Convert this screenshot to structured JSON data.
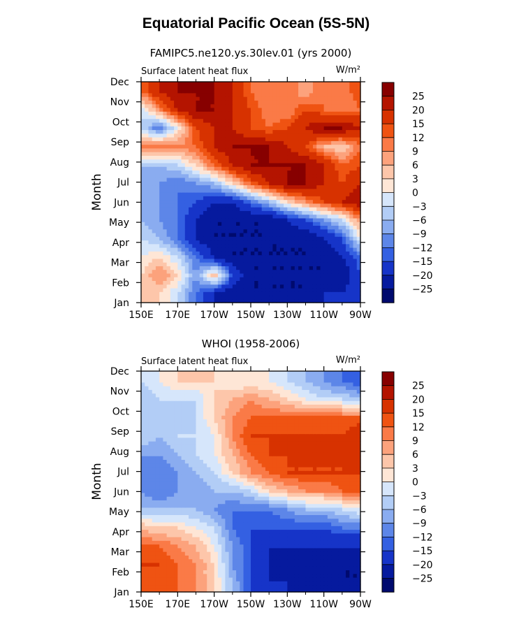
{
  "title": "Equatorial Pacific Ocean (5S-5N)",
  "chart_data": [
    {
      "type": "heatmap",
      "subtitle": "FAMIPC5.ne120.ys.30lev.01 (yrs 2000)",
      "left_label": "Surface latent heat flux",
      "units": "W/m²",
      "ylabel": "Month",
      "xlabel": "",
      "x_ticks": [
        "150E",
        "170E",
        "170W",
        "150W",
        "130W",
        "110W",
        "90W"
      ],
      "y_ticks": [
        "Jan",
        "Feb",
        "Mar",
        "Apr",
        "May",
        "Jun",
        "Jul",
        "Aug",
        "Sep",
        "Oct",
        "Nov",
        "Dec"
      ],
      "colorbar_levels": [
        "25",
        "20",
        "15",
        "12",
        "9",
        "6",
        "3",
        "0",
        "-3",
        "-6",
        "-9",
        "-12",
        "-15",
        "-20",
        "-25"
      ],
      "grid_values": [
        [
          3,
          3,
          -3,
          -12,
          -20,
          -25,
          -25,
          -25,
          -25,
          -25,
          -20,
          -20,
          -15
        ],
        [
          3,
          9,
          3,
          -9,
          6,
          -15,
          -25,
          -25,
          -25,
          -25,
          -25,
          -25,
          -15
        ],
        [
          0,
          3,
          -3,
          -12,
          -20,
          -25,
          -25,
          -25,
          -25,
          -25,
          -25,
          -20,
          -12
        ],
        [
          -3,
          -6,
          -12,
          -20,
          -25,
          -25,
          -25,
          -25,
          -25,
          -25,
          -20,
          -15,
          0
        ],
        [
          -6,
          -9,
          -12,
          -20,
          -25,
          -25,
          -25,
          -25,
          -20,
          -15,
          -9,
          -3,
          9
        ],
        [
          -6,
          -9,
          -12,
          -15,
          -20,
          -20,
          -12,
          -6,
          3,
          9,
          15,
          20,
          25
        ],
        [
          -6,
          -9,
          -12,
          -9,
          -6,
          3,
          12,
          20,
          25,
          25,
          20,
          15,
          20
        ],
        [
          -6,
          -6,
          -3,
          3,
          12,
          20,
          25,
          25,
          25,
          25,
          20,
          12,
          15
        ],
        [
          9,
          12,
          9,
          12,
          20,
          25,
          25,
          25,
          20,
          15,
          6,
          3,
          12
        ],
        [
          -3,
          -12,
          0,
          15,
          20,
          20,
          15,
          12,
          15,
          20,
          25,
          25,
          20
        ],
        [
          -3,
          9,
          20,
          25,
          25,
          20,
          15,
          9,
          9,
          15,
          12,
          9,
          12
        ],
        [
          12,
          20,
          25,
          25,
          25,
          20,
          12,
          9,
          12,
          6,
          12,
          9,
          15
        ]
      ]
    },
    {
      "type": "heatmap",
      "subtitle": "WHOI (1958-2006)",
      "left_label": "Surface latent heat flux",
      "units": "W/m²",
      "ylabel": "Month",
      "xlabel": "",
      "x_ticks": [
        "150E",
        "170E",
        "170W",
        "150W",
        "130W",
        "110W",
        "90W"
      ],
      "y_ticks": [
        "Jan",
        "Feb",
        "Mar",
        "Apr",
        "May",
        "Jun",
        "Jul",
        "Aug",
        "Sep",
        "Oct",
        "Nov",
        "Dec"
      ],
      "colorbar_levels": [
        "25",
        "20",
        "15",
        "12",
        "9",
        "6",
        "3",
        "0",
        "-3",
        "-6",
        "-9",
        "-12",
        "-15",
        "-20",
        "-25"
      ],
      "grid_values": [
        [
          12,
          15,
          12,
          9,
          3,
          -6,
          -15,
          -20,
          -20,
          -25,
          -25,
          -25,
          -25
        ],
        [
          15,
          15,
          12,
          9,
          3,
          -9,
          -15,
          -20,
          -25,
          -25,
          -20,
          -25,
          -25
        ],
        [
          12,
          12,
          9,
          6,
          0,
          -9,
          -15,
          -20,
          -20,
          -20,
          -20,
          -20,
          -20
        ],
        [
          6,
          3,
          3,
          0,
          -3,
          -12,
          -15,
          -15,
          -15,
          -15,
          -15,
          -12,
          -12
        ],
        [
          -6,
          -6,
          -6,
          -6,
          -9,
          -12,
          -12,
          -12,
          -9,
          -6,
          -6,
          -3,
          0
        ],
        [
          -9,
          -12,
          -9,
          -9,
          -6,
          -6,
          -3,
          3,
          6,
          9,
          9,
          12,
          12
        ],
        [
          -12,
          -12,
          -9,
          -6,
          -3,
          3,
          9,
          12,
          15,
          15,
          15,
          15,
          15
        ],
        [
          -9,
          -9,
          -6,
          -3,
          0,
          6,
          12,
          15,
          15,
          15,
          15,
          15,
          20
        ],
        [
          -3,
          -6,
          -3,
          -3,
          0,
          9,
          15,
          15,
          15,
          15,
          15,
          15,
          20
        ],
        [
          -3,
          -6,
          -6,
          -3,
          3,
          9,
          12,
          12,
          12,
          12,
          12,
          12,
          12
        ],
        [
          -6,
          -3,
          -3,
          -3,
          3,
          6,
          9,
          6,
          3,
          0,
          -3,
          -3,
          -6
        ],
        [
          -3,
          0,
          3,
          3,
          3,
          0,
          0,
          0,
          -3,
          -6,
          -9,
          -12,
          -15
        ]
      ]
    }
  ],
  "palette": {
    "colors_high_to_low": [
      "#870000",
      "#b41400",
      "#d73200",
      "#ef5312",
      "#fa7a47",
      "#fca27c",
      "#fdc6aa",
      "#fee6d6",
      "#d6e6fb",
      "#b2cdf6",
      "#8aacf0",
      "#5d86e8",
      "#3460e2",
      "#1634c8",
      "#061a9e",
      "#000a6e"
    ],
    "thresholds_high_to_low": [
      25,
      20,
      15,
      12,
      9,
      6,
      3,
      0,
      -3,
      -6,
      -9,
      -12,
      -15,
      -20,
      -25
    ]
  }
}
